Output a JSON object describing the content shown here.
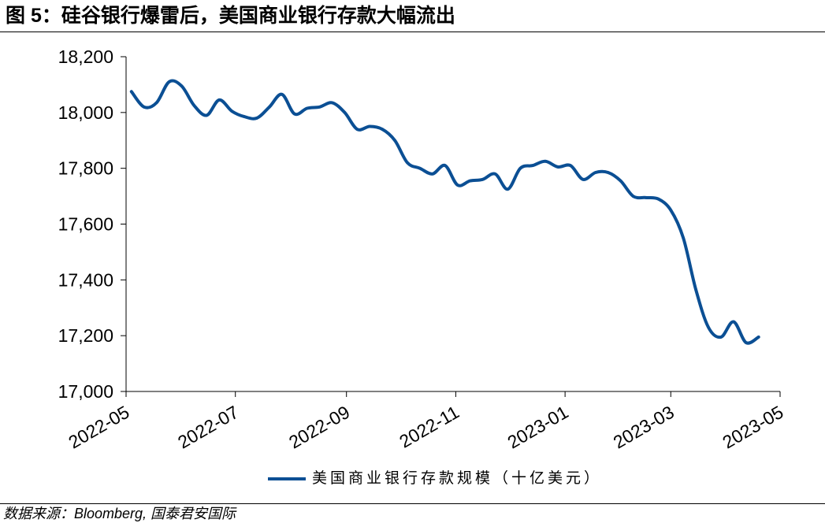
{
  "chart_data": {
    "type": "line",
    "title": "图 5：硅谷银行爆雷后，美国商业银行存款大幅流出",
    "xlabel": "",
    "ylabel": "",
    "xlim": [
      "2022-05",
      "2023-05"
    ],
    "xticks": [
      "2022-05",
      "2022-07",
      "2022-09",
      "2022-11",
      "2023-01",
      "2023-03",
      "2023-05"
    ],
    "ylim": [
      17000,
      18200
    ],
    "yticks": [
      "17,000",
      "17,200",
      "17,400",
      "17,600",
      "17,800",
      "18,000",
      "18,200"
    ],
    "grid": false,
    "legend": "bottom",
    "colors": {
      "line": "#0B4F94",
      "axis": "#000000"
    },
    "x": [
      "2022-05-04",
      "2022-05-11",
      "2022-05-18",
      "2022-05-25",
      "2022-06-01",
      "2022-06-08",
      "2022-06-15",
      "2022-06-22",
      "2022-06-29",
      "2022-07-06",
      "2022-07-13",
      "2022-07-20",
      "2022-07-27",
      "2022-08-03",
      "2022-08-10",
      "2022-08-17",
      "2022-08-24",
      "2022-08-31",
      "2022-09-07",
      "2022-09-14",
      "2022-09-21",
      "2022-09-28",
      "2022-10-05",
      "2022-10-12",
      "2022-10-19",
      "2022-10-26",
      "2022-11-02",
      "2022-11-09",
      "2022-11-16",
      "2022-11-23",
      "2022-11-30",
      "2022-12-07",
      "2022-12-14",
      "2022-12-21",
      "2022-12-28",
      "2023-01-04",
      "2023-01-11",
      "2023-01-18",
      "2023-01-25",
      "2023-02-01",
      "2023-02-08",
      "2023-02-15",
      "2023-02-22",
      "2023-03-01",
      "2023-03-08",
      "2023-03-15",
      "2023-03-22",
      "2023-03-29",
      "2023-04-05",
      "2023-04-12",
      "2023-04-19"
    ],
    "series": [
      {
        "name": "美国商业银行存款规模（十亿美元）",
        "values": [
          18075,
          18020,
          18035,
          18110,
          18095,
          18025,
          17990,
          18045,
          18005,
          17985,
          17980,
          18020,
          18065,
          17995,
          18015,
          18020,
          18035,
          18000,
          17940,
          17950,
          17940,
          17900,
          17820,
          17800,
          17780,
          17810,
          17740,
          17755,
          17760,
          17780,
          17725,
          17800,
          17810,
          17825,
          17805,
          17810,
          17760,
          17785,
          17785,
          17755,
          17700,
          17695,
          17690,
          17650,
          17550,
          17365,
          17230,
          17195,
          17250,
          17175,
          17195
        ]
      }
    ]
  },
  "source": "数据来源：Bloomberg, 国泰君安国际"
}
